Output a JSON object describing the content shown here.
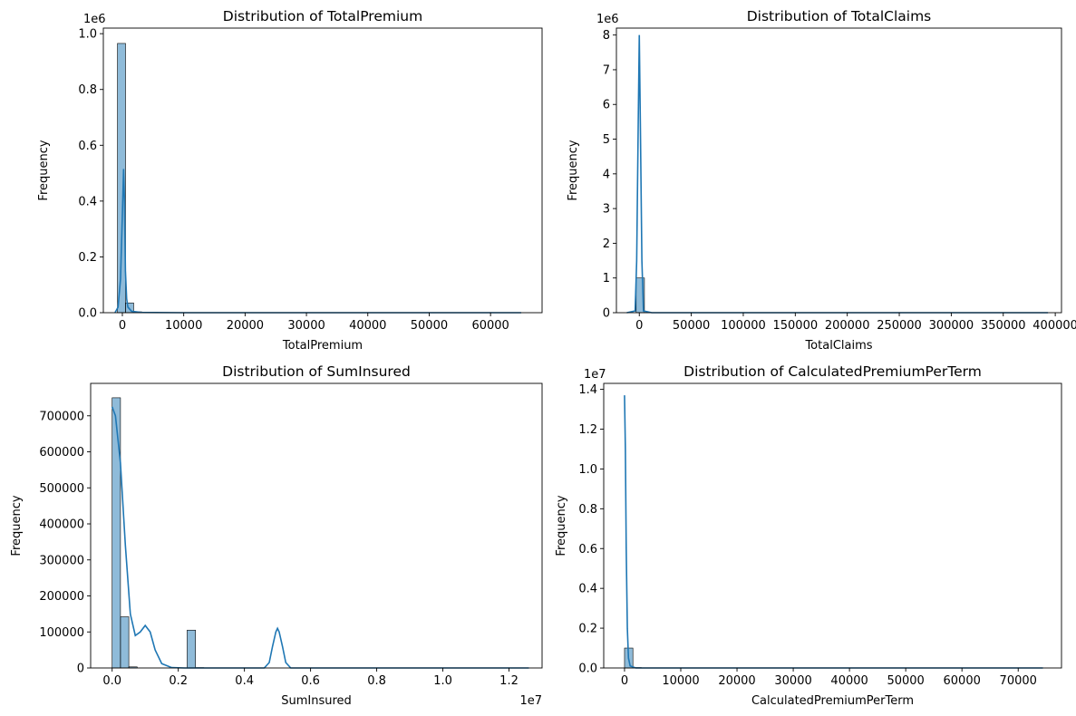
{
  "colors": {
    "series": "#1f77b4"
  },
  "chart_data": [
    {
      "type": "bar",
      "title": "Distribution of TotalPremium",
      "xlabel": "TotalPremium",
      "ylabel": "Frequency",
      "offset_label": "1e6",
      "xlim": [
        -3100,
        68400
      ],
      "ylim": [
        0,
        1.02
      ],
      "xticks": [
        0,
        10000,
        20000,
        30000,
        40000,
        50000,
        60000
      ],
      "xtick_labels": [
        "0",
        "10000",
        "20000",
        "30000",
        "40000",
        "50000",
        "60000"
      ],
      "yticks": [
        0,
        0.2,
        0.4,
        0.6,
        0.8,
        1.0
      ],
      "ytick_labels": [
        "0.0",
        "0.2",
        "0.4",
        "0.6",
        "0.8",
        "1.0"
      ],
      "bin_start": -800,
      "bin_width": 1320,
      "counts": [
        0.965,
        0.035,
        0.003,
        0.001
      ],
      "kde": [
        [
          -1200,
          0.0
        ],
        [
          -700,
          0.02
        ],
        [
          -300,
          0.12
        ],
        [
          0,
          0.35
        ],
        [
          200,
          0.515
        ],
        [
          350,
          0.4
        ],
        [
          500,
          0.15
        ],
        [
          700,
          0.05
        ],
        [
          900,
          0.02
        ],
        [
          1500,
          0.005
        ],
        [
          3000,
          0.001
        ],
        [
          10000,
          0
        ],
        [
          65000,
          0
        ]
      ]
    },
    {
      "type": "bar",
      "title": "Distribution of TotalClaims",
      "xlabel": "TotalClaims",
      "ylabel": "Frequency",
      "offset_label": "1e6",
      "xlim": [
        -22000,
        406000
      ],
      "ylim": [
        0,
        8.2
      ],
      "xticks": [
        0,
        50000,
        100000,
        150000,
        200000,
        250000,
        300000,
        350000,
        400000
      ],
      "xtick_labels": [
        "0",
        "50000",
        "100000",
        "150000",
        "200000",
        "250000",
        "300000",
        "350000",
        "400000"
      ],
      "yticks": [
        0,
        1,
        2,
        3,
        4,
        5,
        6,
        7,
        8
      ],
      "ytick_labels": [
        "0",
        "1",
        "2",
        "3",
        "4",
        "5",
        "6",
        "7",
        "8"
      ],
      "bin_start": -3000,
      "bin_width": 7950,
      "counts": [
        1.0,
        0.002
      ],
      "kde": [
        [
          -12000,
          0
        ],
        [
          -4000,
          0.05
        ],
        [
          -2500,
          1.5
        ],
        [
          -1000,
          5.5
        ],
        [
          0,
          8.0
        ],
        [
          1000,
          5.5
        ],
        [
          2500,
          1.5
        ],
        [
          4000,
          0.05
        ],
        [
          12000,
          0
        ],
        [
          393000,
          0
        ]
      ]
    },
    {
      "type": "bar",
      "title": "Distribution of SumInsured",
      "xlabel": "SumInsured",
      "ylabel": "Frequency",
      "offset_label": "1e7",
      "xlim": [
        -0.065,
        1.3
      ],
      "ylim": [
        0,
        790000
      ],
      "xticks": [
        0,
        0.2,
        0.4,
        0.6,
        0.8,
        1.0,
        1.2
      ],
      "xtick_labels": [
        "0.0",
        "0.2",
        "0.4",
        "0.6",
        "0.8",
        "1.0",
        "1.2"
      ],
      "yticks": [
        0,
        100000,
        200000,
        300000,
        400000,
        500000,
        600000,
        700000
      ],
      "ytick_labels": [
        "0",
        "100000",
        "200000",
        "300000",
        "400000",
        "500000",
        "600000",
        "700000"
      ],
      "bin_start": 0.0,
      "bin_width": 0.0252,
      "counts": [
        750000,
        142000,
        3000,
        0,
        0,
        0,
        0,
        0,
        0,
        105000,
        1000
      ],
      "kde": [
        [
          0.0,
          725000
        ],
        [
          0.01,
          700000
        ],
        [
          0.025,
          570000
        ],
        [
          0.04,
          340000
        ],
        [
          0.055,
          150000
        ],
        [
          0.07,
          90000
        ],
        [
          0.085,
          100000
        ],
        [
          0.1,
          118000
        ],
        [
          0.115,
          100000
        ],
        [
          0.13,
          50000
        ],
        [
          0.15,
          12000
        ],
        [
          0.18,
          1000
        ],
        [
          0.22,
          0
        ],
        [
          0.46,
          0
        ],
        [
          0.475,
          15000
        ],
        [
          0.485,
          60000
        ],
        [
          0.495,
          100000
        ],
        [
          0.5,
          110000
        ],
        [
          0.505,
          100000
        ],
        [
          0.515,
          60000
        ],
        [
          0.525,
          15000
        ],
        [
          0.54,
          0
        ],
        [
          1.26,
          0
        ]
      ]
    },
    {
      "type": "bar",
      "title": "Distribution of CalculatedPremiumPerTerm",
      "xlabel": "CalculatedPremiumPerTerm",
      "ylabel": "Frequency",
      "offset_label": "1e7",
      "xlim": [
        -3700,
        77700
      ],
      "ylim": [
        0,
        1.43
      ],
      "xticks": [
        0,
        10000,
        20000,
        30000,
        40000,
        50000,
        60000,
        70000
      ],
      "xtick_labels": [
        "0",
        "10000",
        "20000",
        "30000",
        "40000",
        "50000",
        "60000",
        "70000"
      ],
      "yticks": [
        0,
        0.2,
        0.4,
        0.6,
        0.8,
        1.0,
        1.2,
        1.4
      ],
      "ytick_labels": [
        "0.0",
        "0.2",
        "0.4",
        "0.6",
        "0.8",
        "1.0",
        "1.2",
        "1.4"
      ],
      "bin_start": 0,
      "bin_width": 1490,
      "counts": [
        0.1,
        0.002
      ],
      "kde": [
        [
          0,
          1.37
        ],
        [
          150,
          1.1
        ],
        [
          300,
          0.6
        ],
        [
          500,
          0.2
        ],
        [
          700,
          0.05
        ],
        [
          1000,
          0.01
        ],
        [
          2000,
          0
        ],
        [
          74400,
          0
        ]
      ]
    }
  ]
}
